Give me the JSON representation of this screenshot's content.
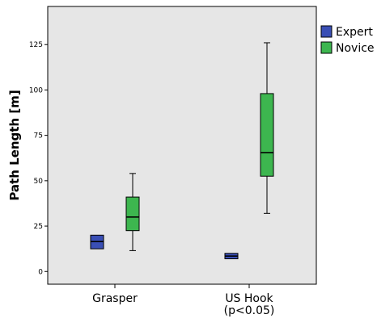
{
  "chart_data": {
    "type": "boxplot",
    "title": "",
    "xlabel": "",
    "ylabel": "Path Length [m]",
    "ylim": [
      -7,
      146
    ],
    "yticks": [
      0,
      25,
      50,
      75,
      100,
      125
    ],
    "grid": false,
    "legend_position": "top-right",
    "categories": [
      {
        "label_lines": [
          "Grasper"
        ]
      },
      {
        "label_lines": [
          "US Hook",
          "(p<0.05)"
        ]
      }
    ],
    "series": [
      {
        "name": "Expert",
        "color": "#3a4fb5",
        "boxes": [
          {
            "min": 12.5,
            "q1": 12.5,
            "median": 16.5,
            "q3": 20,
            "max": 20
          },
          {
            "min": 7,
            "q1": 7,
            "median": 8.5,
            "q3": 10,
            "max": 10
          }
        ]
      },
      {
        "name": "Novice",
        "color": "#3db64f",
        "boxes": [
          {
            "min": 11.5,
            "q1": 22.5,
            "median": 30,
            "q3": 41,
            "max": 54
          },
          {
            "min": 32,
            "q1": 52.5,
            "median": 65.5,
            "q3": 98,
            "max": 126
          }
        ]
      }
    ]
  }
}
